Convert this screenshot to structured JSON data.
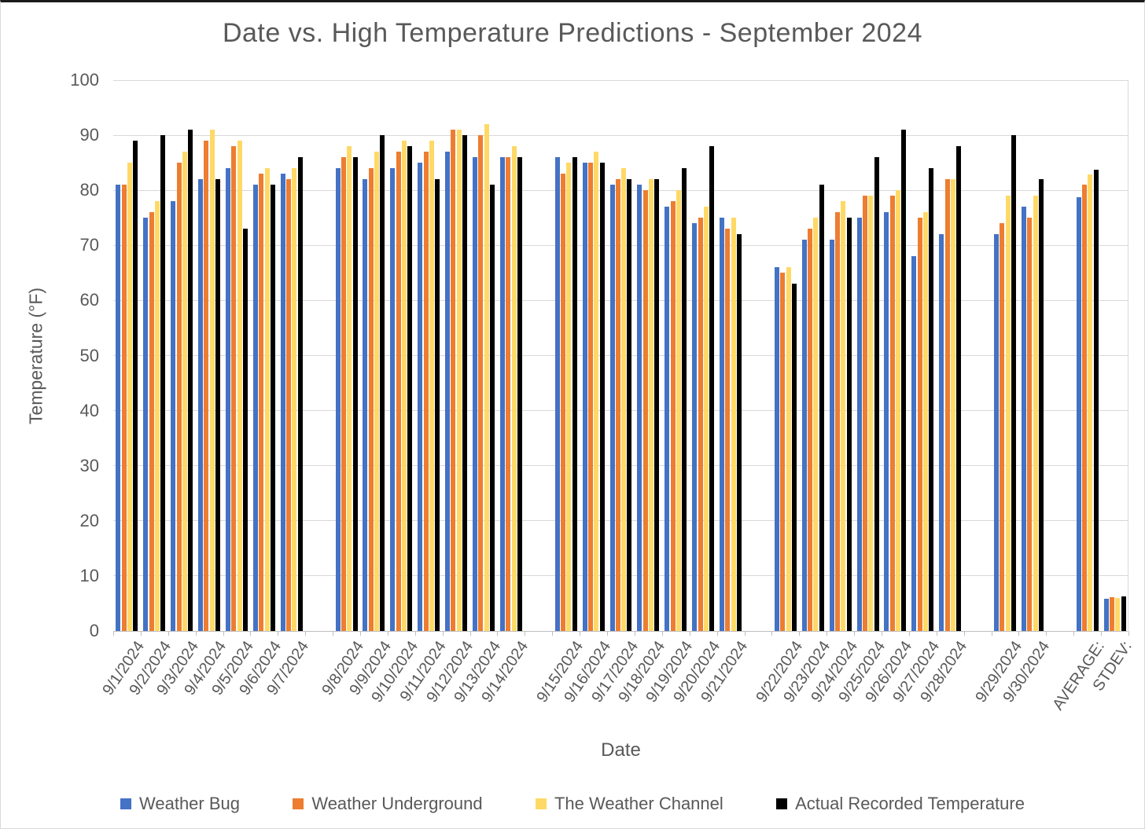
{
  "chart_data": {
    "type": "bar",
    "title": "Date vs. High Temperature Predictions - September 2024",
    "xlabel": "Date",
    "ylabel": "Temperature (°F)",
    "ylim": [
      0,
      100
    ],
    "ytick_step": 10,
    "grid": true,
    "legend_position": "bottom",
    "categories": [
      "9/1/2024",
      "9/2/2024",
      "9/3/2024",
      "9/4/2024",
      "9/5/2024",
      "9/6/2024",
      "9/7/2024",
      "9/8/2024",
      "9/9/2024",
      "9/10/2024",
      "9/11/2024",
      "9/12/2024",
      "9/13/2024",
      "9/14/2024",
      "9/15/2024",
      "9/16/2024",
      "9/17/2024",
      "9/18/2024",
      "9/19/2024",
      "9/20/2024",
      "9/21/2024",
      "9/22/2024",
      "9/23/2024",
      "9/24/2024",
      "9/25/2024",
      "9/26/2024",
      "9/27/2024",
      "9/28/2024",
      "9/29/2024",
      "9/30/2024",
      "AVERAGE:",
      "STDEV:"
    ],
    "group_sizes": [
      7,
      7,
      7,
      7,
      2,
      2
    ],
    "series": [
      {
        "name": "Weather Bug",
        "color": "#4472C4",
        "values": [
          81,
          75,
          78,
          82,
          84,
          81,
          83,
          84,
          82,
          84,
          85,
          87,
          86,
          86,
          86,
          85,
          81,
          81,
          77,
          74,
          75,
          66,
          71,
          71,
          75,
          76,
          68,
          72,
          72,
          77,
          78.8,
          5.9
        ]
      },
      {
        "name": "Weather Underground",
        "color": "#ED7D31",
        "values": [
          81,
          76,
          85,
          89,
          88,
          83,
          82,
          86,
          84,
          87,
          87,
          91,
          90,
          86,
          83,
          85,
          82,
          80,
          78,
          75,
          73,
          65,
          73,
          76,
          79,
          79,
          75,
          82,
          74,
          75,
          81.0,
          6.1
        ]
      },
      {
        "name": "The Weather Channel",
        "color": "#FFD966",
        "values": [
          85,
          78,
          87,
          91,
          89,
          84,
          84,
          88,
          87,
          89,
          89,
          91,
          92,
          88,
          85,
          87,
          84,
          82,
          80,
          77,
          75,
          66,
          75,
          78,
          79,
          80,
          76,
          82,
          79,
          79,
          82.9,
          6.0
        ]
      },
      {
        "name": "Actual Recorded Temperature",
        "color": "#000000",
        "values": [
          89,
          90,
          91,
          82,
          73,
          81,
          86,
          86,
          90,
          88,
          82,
          90,
          81,
          86,
          86,
          85,
          82,
          82,
          84,
          88,
          72,
          63,
          81,
          75,
          86,
          91,
          84,
          88,
          90,
          82,
          83.8,
          6.3
        ]
      }
    ]
  },
  "colors": {
    "gridline": "#D9D9D9",
    "axis_line": "#BFBFBF",
    "text": "#595959",
    "background": "#FFFFFF"
  }
}
